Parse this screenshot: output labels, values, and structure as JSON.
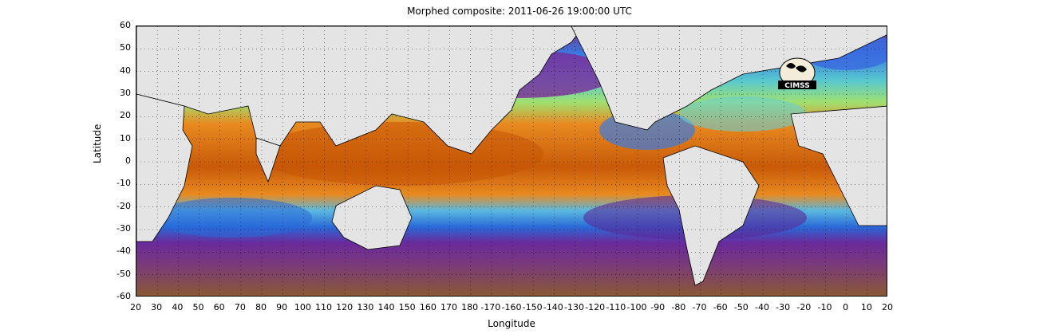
{
  "title": "Morphed composite: 2011-06-26 19:00:00 UTC",
  "x_axis_title": "Longitude",
  "y_axis_title": "Latitude",
  "lat_ticks": [
    "60",
    "50",
    "40",
    "30",
    "20",
    "10",
    "0",
    "-10",
    "-20",
    "-30",
    "-40",
    "-50",
    "-60"
  ],
  "lon_ticks": [
    "20",
    "30",
    "40",
    "50",
    "60",
    "70",
    "80",
    "90",
    "100",
    "110",
    "120",
    "130",
    "140",
    "150",
    "160",
    "170",
    "180",
    "-170",
    "-160",
    "-150",
    "-140",
    "-130",
    "-120",
    "-110",
    "-100",
    "-90",
    "-80",
    "-70",
    "-60",
    "-50",
    "-40",
    "-30",
    "-20",
    "-10",
    "0",
    "10",
    "20"
  ],
  "logo_text": "CIMSS",
  "colors": {
    "land": "#e4e4e4",
    "very_dry": "#8a5a2e",
    "dry": "#6a2a8a",
    "moderate": "#2f7fe0",
    "humid": "#5ac8c8",
    "moist": "#9ee07a",
    "very_moist": "#e07a10",
    "saturated": "#b04a00"
  }
}
